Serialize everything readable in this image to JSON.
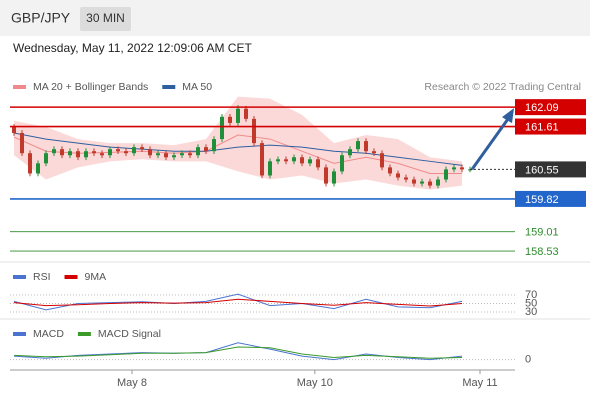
{
  "header": {
    "symbol": "GBP/JPY",
    "interval": "30 MIN",
    "datetime": "Wednesday, May 11, 2022 12:09:06 AM CET"
  },
  "chart_data": [
    {
      "type": "candlestick",
      "source": "Research © 2022 Trading Central",
      "legend": [
        {
          "name": "MA 20 + Bollinger Bands",
          "color": "#f08a8a"
        },
        {
          "name": "MA 50",
          "color": "#2f5f9e"
        }
      ],
      "up_color": "#1f8f3a",
      "down_color": "#c0392b",
      "band_color": "#fbd9d9",
      "xlim": [
        -0.25,
        58.25
      ],
      "ylim": [
        158.26,
        162.39
      ],
      "xticks": [
        {
          "value": 14.75,
          "label": "May 8"
        },
        {
          "value": 37.6,
          "label": "May 10"
        },
        {
          "value": 58.25,
          "label": "May 11"
        }
      ],
      "open": [
        161.6,
        161.45,
        160.95,
        160.45,
        160.7,
        160.95,
        161.05,
        160.9,
        161.0,
        160.85,
        161.0,
        160.95,
        160.9,
        161.05,
        161.0,
        160.95,
        161.1,
        161.05,
        160.9,
        160.95,
        160.85,
        160.9,
        160.95,
        160.9,
        161.1,
        161.0,
        161.3,
        161.85,
        161.7,
        162.05,
        161.8,
        161.2,
        160.4,
        160.75,
        160.8,
        160.75,
        160.85,
        160.7,
        160.8,
        160.6,
        160.2,
        160.5,
        160.9,
        161.05,
        161.25,
        161.0,
        160.95,
        160.6,
        160.45,
        160.35,
        160.3,
        160.2,
        160.25,
        160.15,
        160.3,
        160.55,
        160.6,
        160.55
      ],
      "high": [
        161.67,
        161.52,
        161.02,
        160.77,
        161.02,
        161.12,
        161.12,
        161.07,
        161.07,
        161.07,
        161.07,
        161.02,
        161.12,
        161.12,
        161.07,
        161.17,
        161.17,
        161.12,
        161.02,
        161.02,
        160.97,
        161.02,
        161.02,
        161.17,
        161.17,
        161.37,
        161.92,
        161.92,
        162.14,
        162.12,
        161.87,
        161.27,
        160.82,
        160.87,
        160.87,
        160.92,
        160.92,
        160.87,
        160.87,
        160.67,
        160.57,
        160.97,
        161.12,
        161.32,
        161.32,
        161.07,
        161.02,
        160.67,
        160.52,
        160.42,
        160.37,
        160.32,
        160.32,
        160.37,
        160.62,
        160.67,
        160.67,
        160.62
      ],
      "low": [
        161.38,
        160.88,
        160.38,
        160.38,
        160.63,
        160.88,
        160.83,
        160.83,
        160.78,
        160.78,
        160.88,
        160.83,
        160.83,
        160.93,
        160.88,
        160.88,
        160.98,
        160.83,
        160.83,
        160.78,
        160.78,
        160.83,
        160.83,
        160.83,
        160.93,
        160.93,
        161.23,
        161.63,
        161.63,
        161.73,
        161.13,
        160.33,
        160.33,
        160.68,
        160.68,
        160.68,
        160.63,
        160.63,
        160.53,
        160.13,
        160.13,
        160.43,
        160.83,
        160.98,
        160.93,
        160.88,
        160.53,
        160.38,
        160.28,
        160.23,
        160.13,
        160.13,
        160.08,
        160.08,
        160.23,
        160.48,
        160.48,
        160.48
      ],
      "close": [
        161.45,
        160.95,
        160.45,
        160.7,
        160.95,
        161.05,
        160.9,
        161.0,
        160.85,
        161.0,
        160.95,
        160.9,
        161.05,
        161.0,
        160.95,
        161.1,
        161.05,
        160.9,
        160.95,
        160.85,
        160.9,
        160.95,
        160.9,
        161.1,
        161.0,
        161.3,
        161.85,
        161.7,
        162.05,
        161.8,
        161.2,
        160.4,
        160.75,
        160.8,
        160.75,
        160.85,
        160.7,
        160.8,
        160.6,
        160.2,
        160.5,
        160.9,
        161.05,
        161.25,
        161.0,
        160.95,
        160.6,
        160.45,
        160.35,
        160.3,
        160.2,
        160.25,
        160.15,
        160.3,
        160.55,
        160.6,
        160.55,
        160.55
      ],
      "bands": {
        "x": [
          0,
          4,
          8,
          12,
          16,
          20,
          24,
          28,
          32,
          36,
          40,
          44,
          48,
          52,
          56
        ],
        "upper": [
          161.75,
          161.6,
          161.3,
          161.2,
          161.2,
          161.15,
          161.3,
          162.35,
          162.3,
          161.9,
          161.2,
          161.4,
          161.3,
          160.85,
          160.75
        ],
        "lower": [
          160.9,
          160.3,
          160.6,
          160.75,
          160.8,
          160.75,
          160.75,
          160.5,
          160.3,
          160.4,
          160.2,
          160.3,
          160.15,
          160.05,
          160.15
        ],
        "ma20": [
          161.35,
          161.0,
          160.95,
          160.97,
          161.0,
          160.95,
          161.0,
          161.4,
          161.3,
          161.0,
          160.7,
          160.85,
          160.7,
          160.45,
          160.45
        ],
        "ma50": [
          161.45,
          161.3,
          161.2,
          161.1,
          161.05,
          161.0,
          161.0,
          161.1,
          161.15,
          161.1,
          161.0,
          160.95,
          160.85,
          160.75,
          160.65
        ]
      },
      "levels": [
        {
          "value": 162.09,
          "color": "#d40000",
          "line": "solid",
          "label_box": true
        },
        {
          "value": 161.61,
          "color": "#d40000",
          "line": "solid",
          "label_box": true
        },
        {
          "value": 160.55,
          "color": "#333333",
          "line": "dotted",
          "label_box": true
        },
        {
          "value": 159.82,
          "color": "#2266cc",
          "line": "solid",
          "label_box": true
        },
        {
          "value": 159.01,
          "color": "#2e8b2e",
          "line": "solid",
          "label_box": false
        },
        {
          "value": 158.53,
          "color": "#2e8b2e",
          "line": "solid",
          "label_box": false
        }
      ]
    },
    {
      "type": "line",
      "ylim": [
        10,
        90
      ],
      "yticks": [
        70,
        50,
        30
      ],
      "x": [
        0,
        4,
        8,
        12,
        16,
        20,
        24,
        28,
        32,
        36,
        40,
        44,
        48,
        52,
        56
      ],
      "series": [
        {
          "name": "RSI",
          "color": "#4a74d0",
          "values": [
            55,
            35,
            50,
            52,
            54,
            50,
            55,
            72,
            45,
            50,
            38,
            60,
            42,
            40,
            55
          ]
        },
        {
          "name": "9MA",
          "color": "#d40000",
          "values": [
            52,
            45,
            47,
            50,
            52,
            51,
            52,
            60,
            55,
            50,
            46,
            52,
            48,
            44,
            50
          ]
        }
      ]
    },
    {
      "type": "line",
      "ylim": [
        -0.12,
        0.28
      ],
      "yticks": [
        0
      ],
      "x": [
        0,
        4,
        8,
        12,
        16,
        20,
        24,
        28,
        32,
        36,
        40,
        44,
        48,
        52,
        56
      ],
      "series": [
        {
          "name": "MACD",
          "color": "#4a74d0",
          "values": [
            0.05,
            0.02,
            0.06,
            0.08,
            0.1,
            0.09,
            0.1,
            0.24,
            0.15,
            0.05,
            0.0,
            0.08,
            0.03,
            0.0,
            0.05
          ]
        },
        {
          "name": "MACD Signal",
          "color": "#3a9a2a",
          "values": [
            0.06,
            0.04,
            0.05,
            0.07,
            0.09,
            0.09,
            0.1,
            0.18,
            0.17,
            0.08,
            0.03,
            0.06,
            0.04,
            0.02,
            0.03
          ]
        }
      ]
    }
  ]
}
